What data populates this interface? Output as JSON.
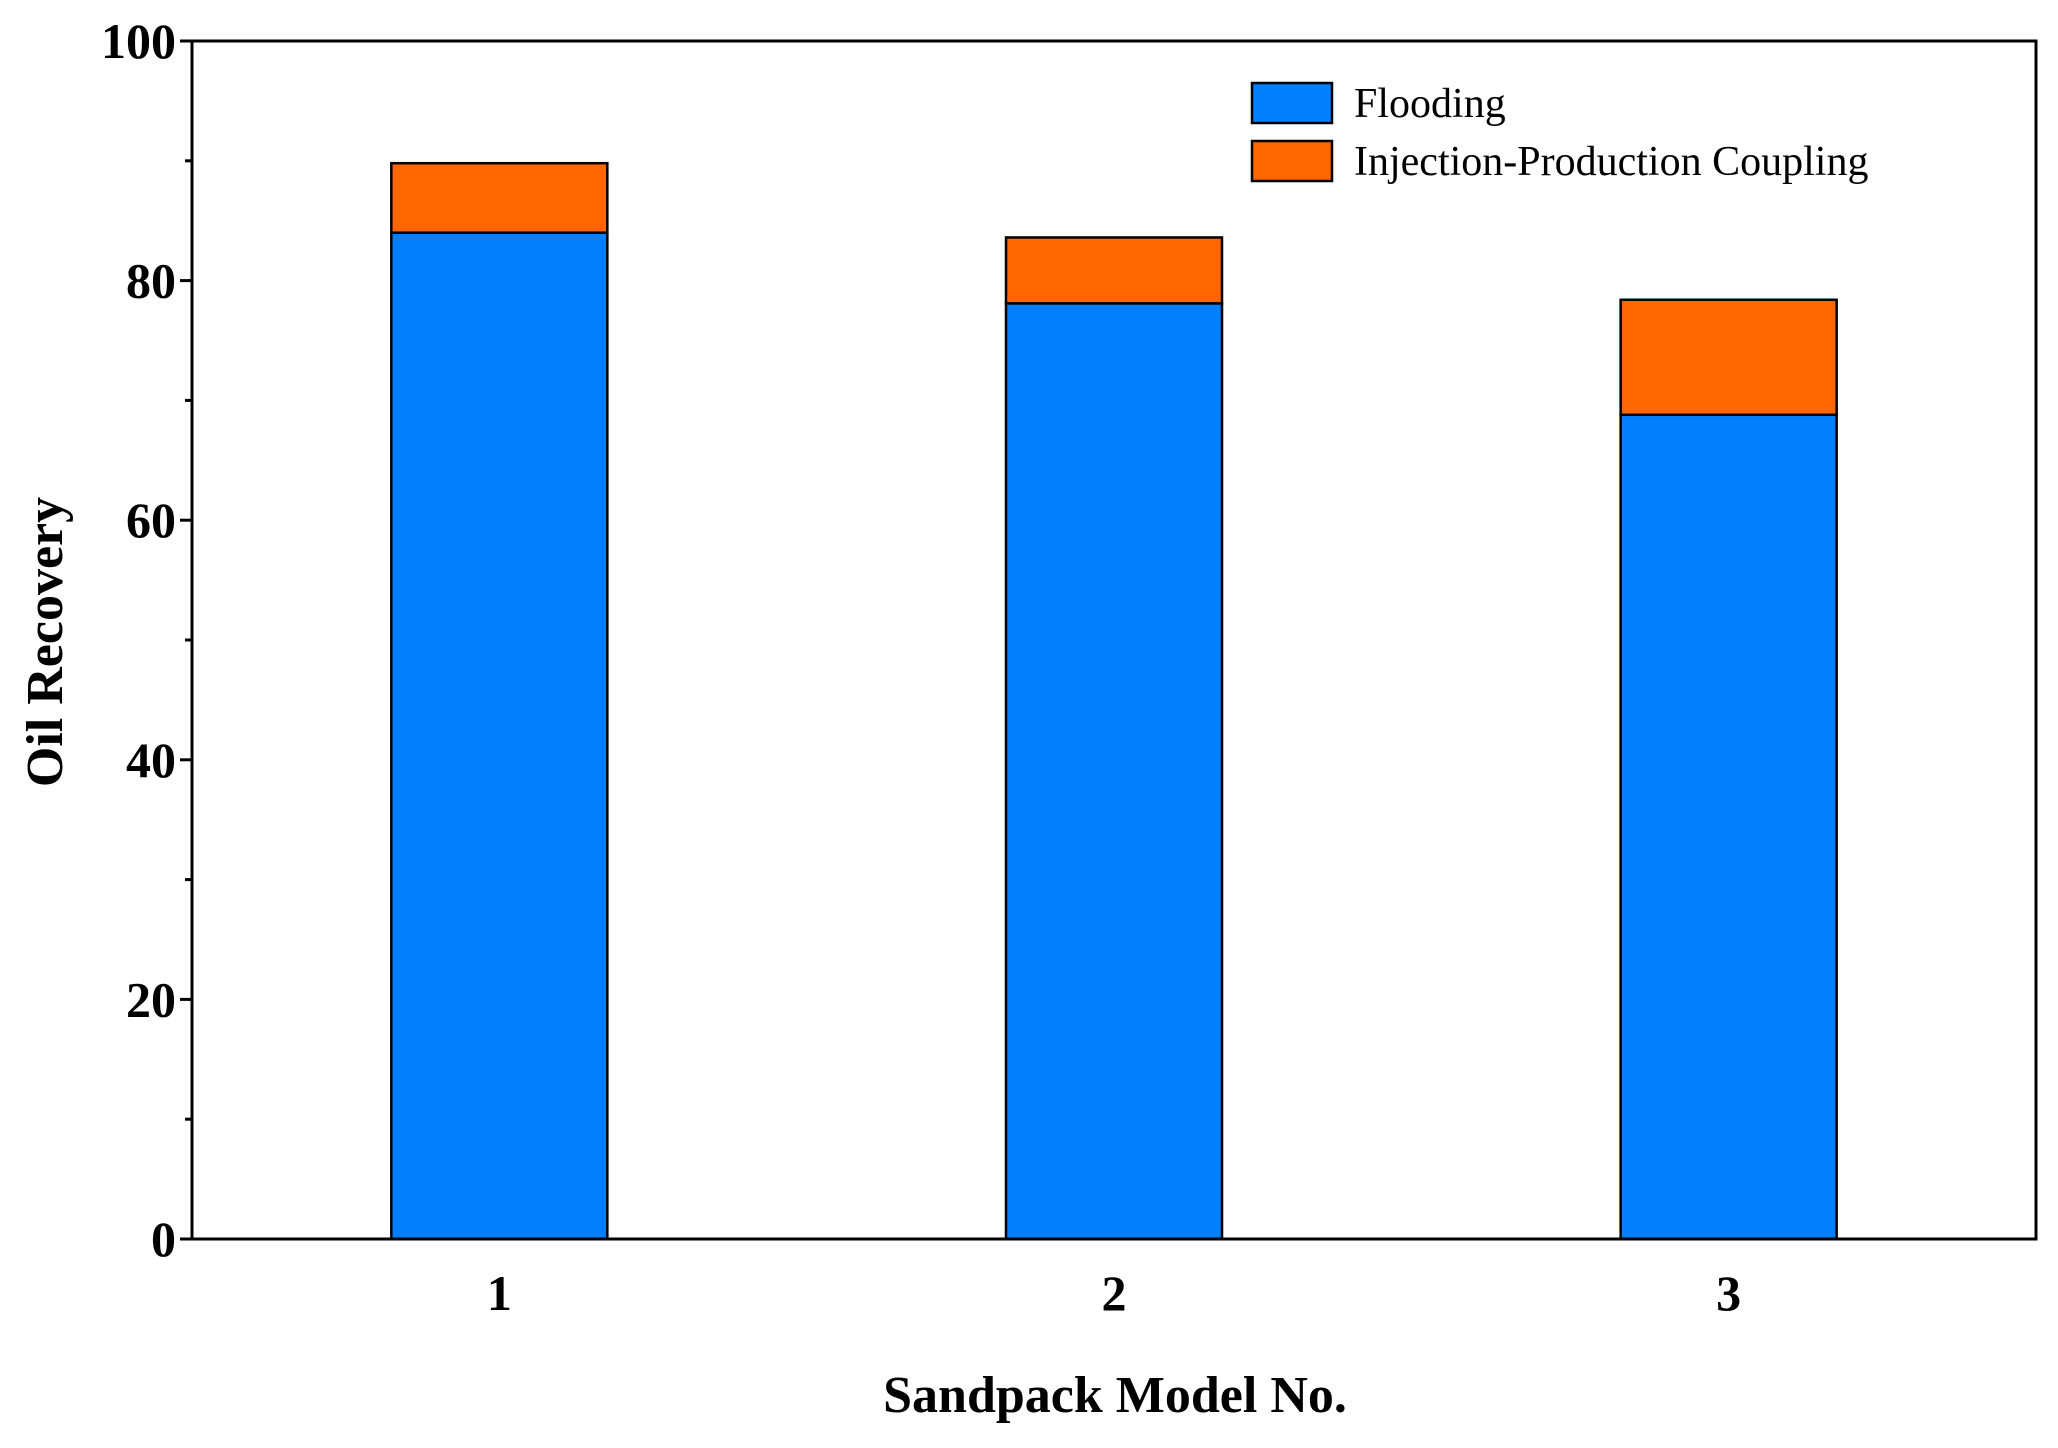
{
  "chart_data": {
    "type": "bar",
    "stacked": true,
    "title": "",
    "xlabel": "Sandpack Model No.",
    "ylabel": "Oil Recovery",
    "ylim": [
      0,
      100
    ],
    "yticks": [
      0,
      20,
      40,
      60,
      80,
      100
    ],
    "yminor_step": 10,
    "categories": [
      "1",
      "2",
      "3"
    ],
    "series": [
      {
        "name": "Flooding",
        "color": "#0080FF",
        "values": [
          84.0,
          78.1,
          68.8
        ]
      },
      {
        "name": "Injection-Production Coupling",
        "color": "#FF6600",
        "values": [
          5.8,
          5.5,
          9.6
        ]
      }
    ],
    "legend_position": "top-right",
    "grid": false
  }
}
